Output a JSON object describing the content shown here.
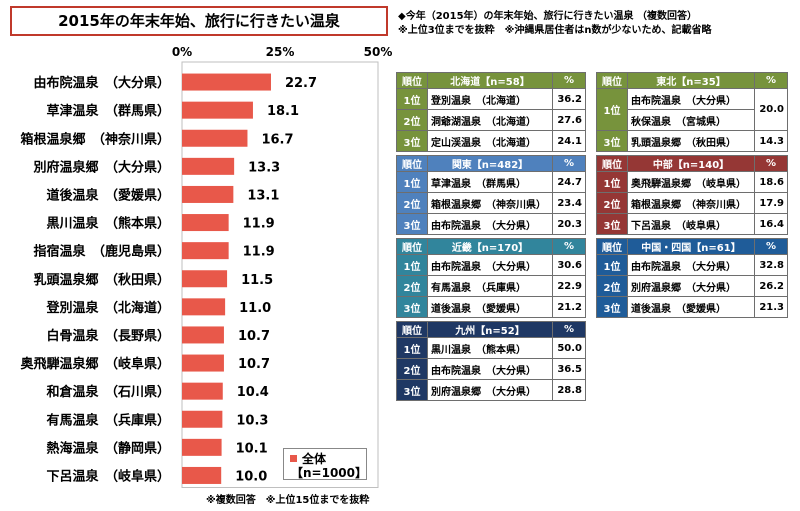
{
  "title": "2015年の年末年始、旅行に行きたい温泉",
  "notes_top": [
    "◆今年（2015年）の年末年始、旅行に行きたい温泉 （複数回答）",
    "※上位3位までを抜粋　※沖縄県居住者はn数が少ないため、記載省略"
  ],
  "bottom_note": "※複数回答　※上位15位までを抜粋",
  "legend": {
    "series": "全体",
    "n": "【n=1000】"
  },
  "colors": {
    "bar": "#e8584a",
    "title_border": "#c0392b"
  },
  "chart_data": {
    "type": "bar",
    "orientation": "horizontal",
    "title": "",
    "xlim": [
      0,
      50
    ],
    "ticks": [
      "0%",
      "25%",
      "50%"
    ],
    "tick_values": [
      0,
      25,
      50
    ],
    "categories": [
      "由布院温泉　（大分県）",
      "草津温泉　（群馬県）",
      "箱根温泉郷　（神奈川県）",
      "別府温泉郷　（大分県）",
      "道後温泉　（愛媛県）",
      "黒川温泉　（熊本県）",
      "指宿温泉　（鹿児島県）",
      "乳頭温泉郷　（秋田県）",
      "登別温泉　（北海道）",
      "白骨温泉　（長野県）",
      "奥飛騨温泉郷　（岐阜県）",
      "和倉温泉　（石川県）",
      "有馬温泉　（兵庫県）",
      "熱海温泉　（静岡県）",
      "下呂温泉　（岐阜県）"
    ],
    "values": [
      22.7,
      18.1,
      16.7,
      13.3,
      13.1,
      11.9,
      11.9,
      11.5,
      11.0,
      10.7,
      10.7,
      10.4,
      10.3,
      10.1,
      10.0
    ],
    "value_labels": [
      "22.7",
      "18.1",
      "16.7",
      "13.3",
      "13.1",
      "11.9",
      "11.9",
      "11.5",
      "11.0",
      "10.7",
      "10.7",
      "10.4",
      "10.3",
      "10.1",
      "10.0"
    ],
    "series_name": "全体"
  },
  "regions": [
    {
      "key": "hokkaido",
      "region": "北海道",
      "n": "【n=58】",
      "color": "#77933c",
      "rows": [
        {
          "rank": "1位",
          "name": "登別温泉　（北海道）",
          "pct": "36.2"
        },
        {
          "rank": "2位",
          "name": "洞爺湖温泉　（北海道）",
          "pct": "27.6"
        },
        {
          "rank": "3位",
          "name": "定山渓温泉　（北海道）",
          "pct": "24.1"
        }
      ]
    },
    {
      "key": "tohoku",
      "region": "東北",
      "n": "【n=35】",
      "color": "#77933c",
      "rows": [
        {
          "rank": "1位",
          "name": "由布院温泉　（大分県）",
          "name2": "秋保温泉　（宮城県）",
          "pct": "20.0"
        },
        {
          "rank": "3位",
          "name": "乳頭温泉郷　（秋田県）",
          "pct": "14.3"
        }
      ]
    },
    {
      "key": "kanto",
      "region": "関東",
      "n": "【n=482】",
      "color": "#4f81bd",
      "rows": [
        {
          "rank": "1位",
          "name": "草津温泉　（群馬県）",
          "pct": "24.7"
        },
        {
          "rank": "2位",
          "name": "箱根温泉郷　（神奈川県）",
          "pct": "23.4"
        },
        {
          "rank": "3位",
          "name": "由布院温泉　（大分県）",
          "pct": "20.3"
        }
      ]
    },
    {
      "key": "chubu",
      "region": "中部",
      "n": "【n=140】",
      "color": "#953735",
      "rows": [
        {
          "rank": "1位",
          "name": "奥飛騨温泉郷　（岐阜県）",
          "pct": "18.6"
        },
        {
          "rank": "2位",
          "name": "箱根温泉郷　（神奈川県）",
          "pct": "17.9"
        },
        {
          "rank": "3位",
          "name": "下呂温泉　（岐阜県）",
          "pct": "16.4"
        }
      ]
    },
    {
      "key": "kinki",
      "region": "近畿",
      "n": "【n=170】",
      "color": "#31859c",
      "rows": [
        {
          "rank": "1位",
          "name": "由布院温泉　（大分県）",
          "pct": "30.6"
        },
        {
          "rank": "2位",
          "name": "有馬温泉　（兵庫県）",
          "pct": "22.9"
        },
        {
          "rank": "3位",
          "name": "道後温泉　（愛媛県）",
          "pct": "21.2"
        }
      ]
    },
    {
      "key": "chugoku",
      "region": "中国・四国",
      "n": "【n=61】",
      "color": "#1f5c99",
      "rows": [
        {
          "rank": "1位",
          "name": "由布院温泉　（大分県）",
          "pct": "32.8"
        },
        {
          "rank": "2位",
          "name": "別府温泉郷　（大分県）",
          "pct": "26.2"
        },
        {
          "rank": "3位",
          "name": "道後温泉　（愛媛県）",
          "pct": "21.3"
        }
      ]
    },
    {
      "key": "kyushu",
      "region": "九州",
      "n": "【n=52】",
      "color": "#1f3864",
      "rows": [
        {
          "rank": "1位",
          "name": "黒川温泉　（熊本県）",
          "pct": "50.0"
        },
        {
          "rank": "2位",
          "name": "由布院温泉　（大分県）",
          "pct": "36.5"
        },
        {
          "rank": "3位",
          "name": "別府温泉郷　（大分県）",
          "pct": "28.8"
        }
      ]
    }
  ],
  "table_headers": {
    "rank": "順位",
    "pct": "%"
  }
}
